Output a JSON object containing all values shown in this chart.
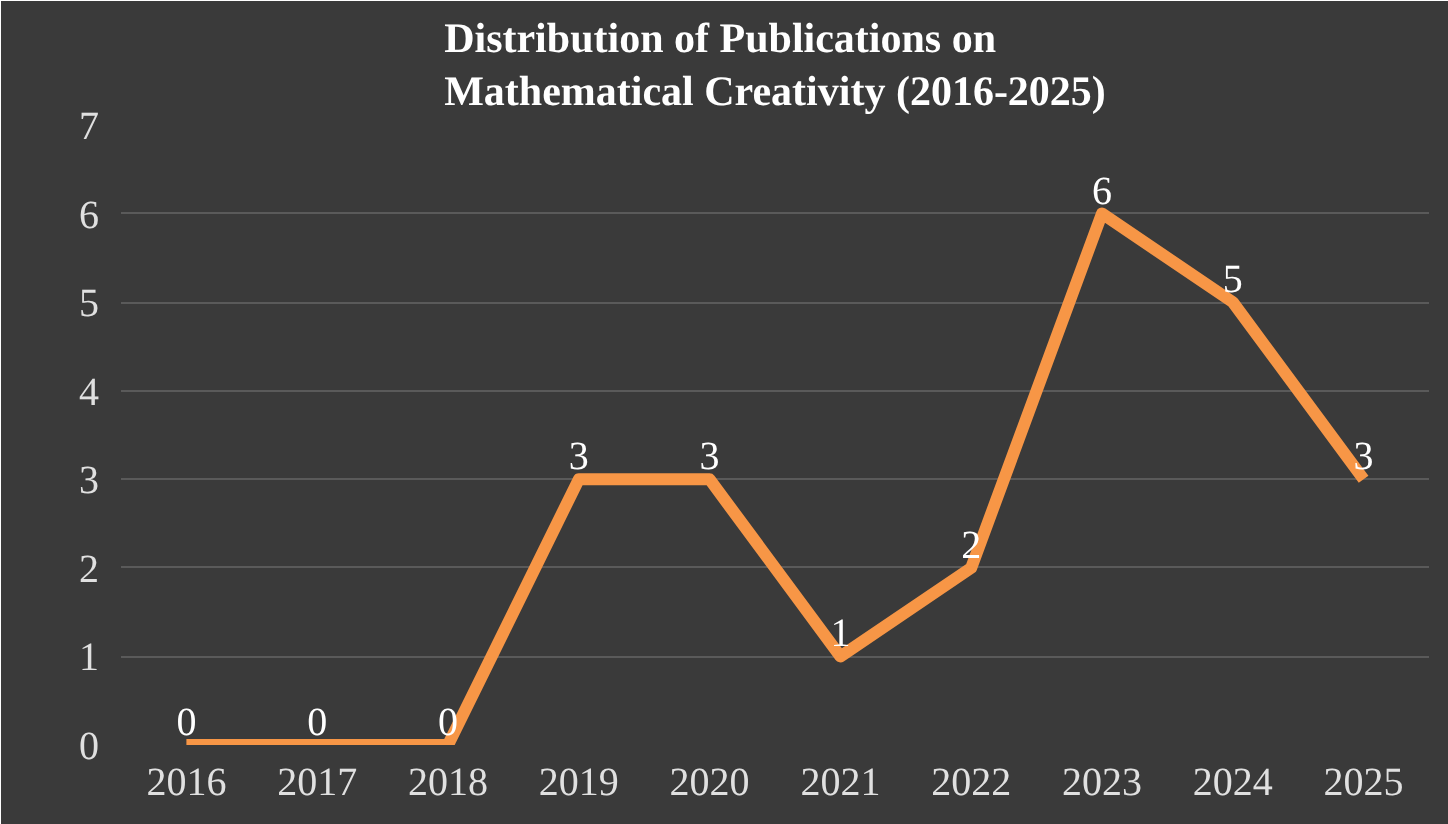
{
  "chart_data": {
    "type": "line",
    "title": "Distribution of Publications on\nMathematical Creativity (2016-2025)",
    "categories": [
      "2016",
      "2017",
      "2018",
      "2019",
      "2020",
      "2021",
      "2022",
      "2023",
      "2024",
      "2025"
    ],
    "series": [
      {
        "color": "#f79646",
        "values": [
          0,
          0,
          0,
          3,
          3,
          1,
          2,
          6,
          5,
          3
        ]
      }
    ],
    "ylim": [
      0,
      7
    ],
    "yticks": [
      0,
      1,
      2,
      3,
      4,
      5,
      6,
      7
    ],
    "grid": "y",
    "data_labels": true,
    "marker": "none",
    "line_style": "solid"
  }
}
